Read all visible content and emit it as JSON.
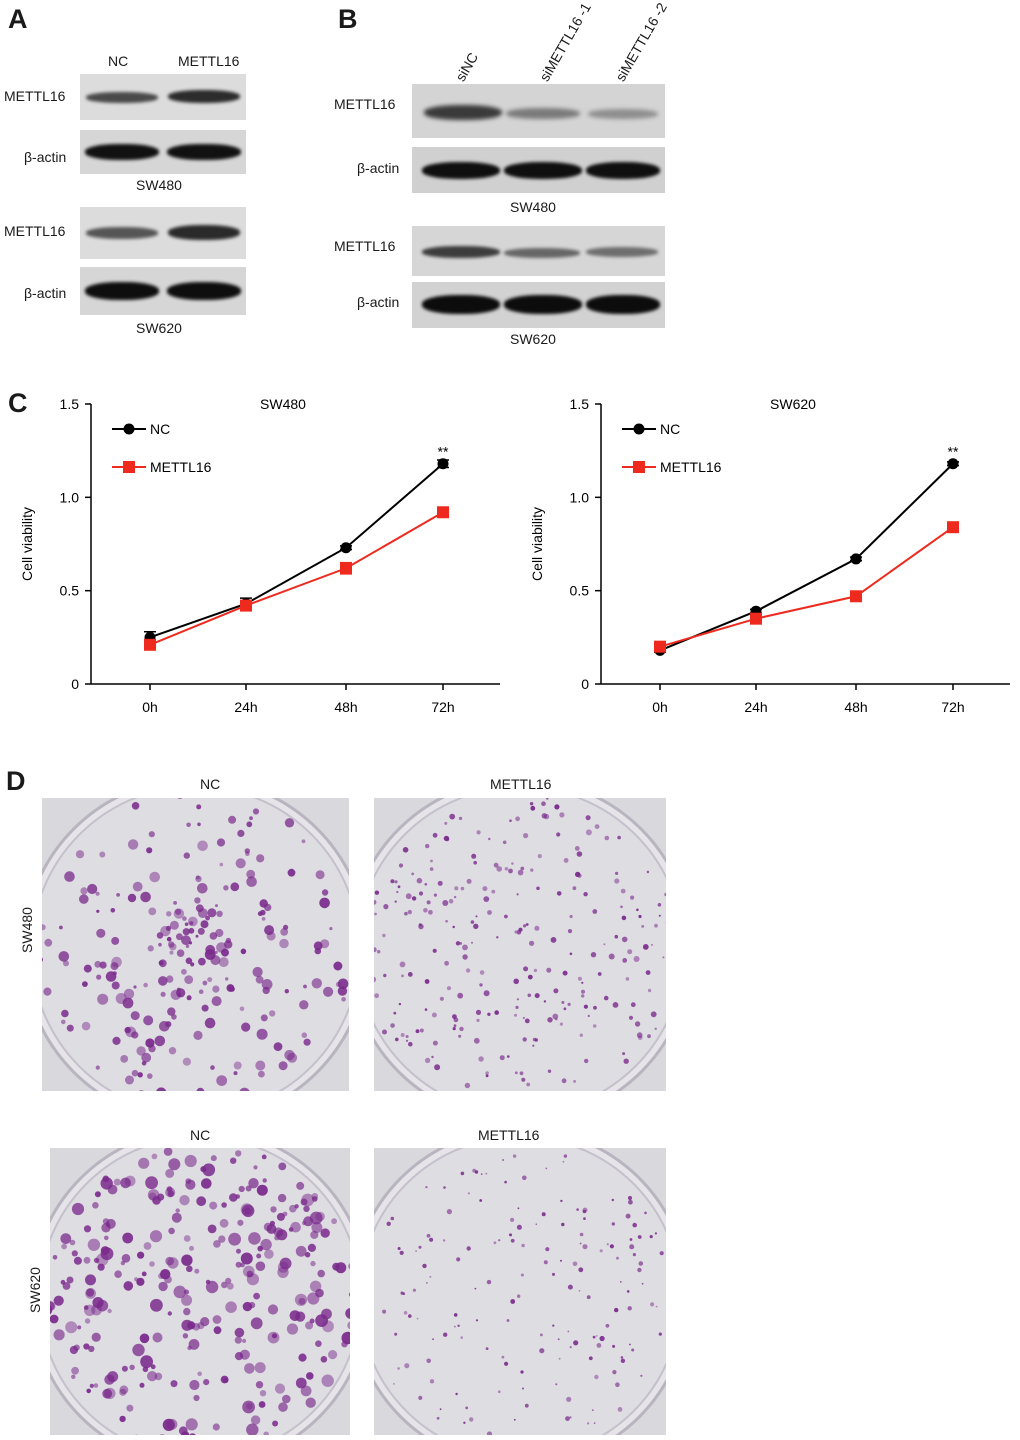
{
  "panels": {
    "a": "A",
    "b": "B",
    "c": "C",
    "d": "D"
  },
  "panel_a": {
    "columns": [
      "NC",
      "METTL16"
    ],
    "rows": [
      "METTL16",
      "β-actin",
      "METTL16",
      "β-actin"
    ],
    "captions": [
      "SW480",
      "SW620"
    ]
  },
  "panel_b": {
    "columns": [
      "siNC",
      "siMETTL16 -1",
      "siMETTL16 -2"
    ],
    "rows": [
      "METTL16",
      "β-actin",
      "METTL16",
      "β-actin"
    ],
    "captions": [
      "SW480",
      "SW620"
    ]
  },
  "chart_data": [
    {
      "type": "line",
      "title": "SW480",
      "xlabel": "",
      "ylabel": "Cell viability",
      "categories": [
        "0h",
        "24h",
        "48h",
        "72h"
      ],
      "ylim": [
        0,
        1.5
      ],
      "yticks": [
        "0",
        "0.5",
        "1.0",
        "1.5"
      ],
      "legend": "top-left",
      "annotation": "**",
      "series": [
        {
          "name": "NC",
          "color": "#000000",
          "marker": "circle",
          "values": [
            0.25,
            0.43,
            0.73,
            1.18
          ],
          "errors": [
            0.03,
            0.03,
            0.01,
            0.02
          ]
        },
        {
          "name": "METTL16",
          "color": "#ee2a1e",
          "marker": "square",
          "values": [
            0.21,
            0.42,
            0.62,
            0.92
          ],
          "errors": [
            0.02,
            0.02,
            0.03,
            0.02
          ]
        }
      ]
    },
    {
      "type": "line",
      "title": "SW620",
      "xlabel": "",
      "ylabel": "Cell viability",
      "categories": [
        "0h",
        "24h",
        "48h",
        "72h"
      ],
      "ylim": [
        0,
        1.5
      ],
      "yticks": [
        "0",
        "0.5",
        "1.0",
        "1.5"
      ],
      "legend": "top-left",
      "annotation": "**",
      "series": [
        {
          "name": "NC",
          "color": "#000000",
          "marker": "circle",
          "values": [
            0.18,
            0.39,
            0.67,
            1.18
          ],
          "errors": [
            0.01,
            0.01,
            0.01,
            0.01
          ]
        },
        {
          "name": "METTL16",
          "color": "#ee2a1e",
          "marker": "square",
          "values": [
            0.2,
            0.35,
            0.47,
            0.84
          ],
          "errors": [
            0.01,
            0.01,
            0.01,
            0.02
          ]
        }
      ]
    }
  ],
  "panel_d": {
    "columns_top": [
      "NC",
      "METTL16"
    ],
    "columns_bottom": [
      "NC",
      "METTL16"
    ],
    "rows": [
      "SW480",
      "SW620"
    ],
    "colony_color": "#7a2a8c"
  }
}
